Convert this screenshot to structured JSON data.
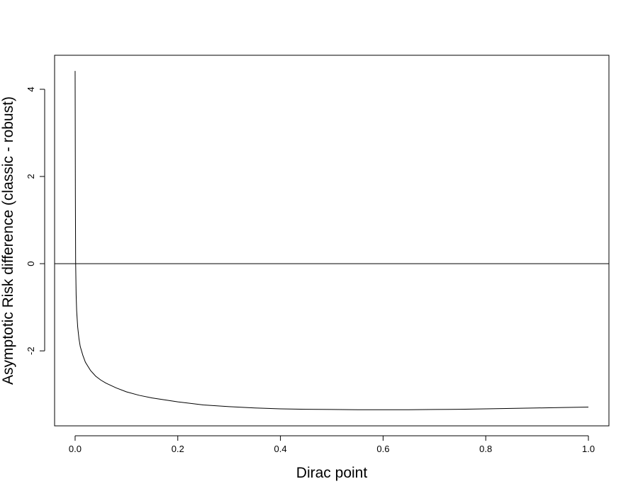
{
  "chart_data": {
    "type": "line",
    "title": "",
    "xlabel": "Dirac point",
    "ylabel": "Asymptotic Risk difference (classic - robust)",
    "xlim": [
      -0.04,
      1.04
    ],
    "ylim": [
      -3.72,
      4.78
    ],
    "x_ticks": [
      0.0,
      0.2,
      0.4,
      0.6,
      0.8,
      1.0
    ],
    "x_tick_labels": [
      "0.0",
      "0.2",
      "0.4",
      "0.6",
      "0.8",
      "1.0"
    ],
    "y_ticks": [
      -2,
      0,
      2,
      4
    ],
    "y_tick_labels": [
      "-2",
      "0",
      "2",
      "4"
    ],
    "grid": false,
    "legend": "none",
    "reference_lines": [
      {
        "orientation": "horizontal",
        "y": 0
      }
    ],
    "series": [
      {
        "color": "#000000",
        "x": [
          0.0,
          0.0005,
          0.001,
          0.002,
          0.003,
          0.005,
          0.0075,
          0.01,
          0.015,
          0.02,
          0.03,
          0.04,
          0.05,
          0.06,
          0.08,
          0.1,
          0.125,
          0.15,
          0.2,
          0.25,
          0.3,
          0.35,
          0.4,
          0.45,
          0.5,
          0.55,
          0.6,
          0.65,
          0.7,
          0.75,
          0.8,
          0.85,
          0.9,
          0.95,
          1.0
        ],
        "y": [
          4.42,
          1.6,
          0.05,
          -0.72,
          -1.08,
          -1.45,
          -1.72,
          -1.9,
          -2.1,
          -2.26,
          -2.45,
          -2.58,
          -2.67,
          -2.74,
          -2.85,
          -2.94,
          -3.02,
          -3.08,
          -3.17,
          -3.24,
          -3.28,
          -3.31,
          -3.33,
          -3.34,
          -3.345,
          -3.35,
          -3.35,
          -3.35,
          -3.345,
          -3.34,
          -3.33,
          -3.32,
          -3.31,
          -3.3,
          -3.29
        ]
      }
    ]
  }
}
